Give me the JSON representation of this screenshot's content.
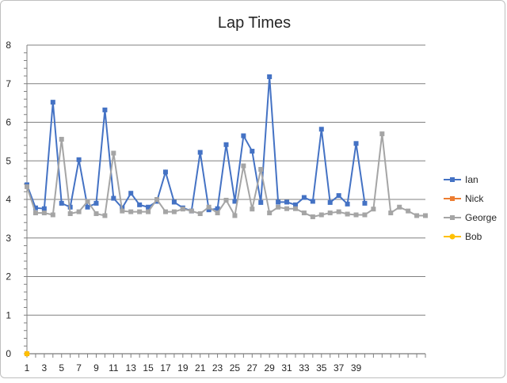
{
  "chart_data": {
    "type": "line",
    "title": "Lap Times",
    "xlabel": "",
    "ylabel": "",
    "ylim": [
      0,
      8
    ],
    "yticks": [
      0,
      1,
      2,
      3,
      4,
      5,
      6,
      7,
      8
    ],
    "xlim": [
      1,
      47
    ],
    "xticks": [
      1,
      3,
      5,
      7,
      9,
      11,
      13,
      15,
      17,
      19,
      21,
      23,
      25,
      27,
      29,
      31,
      33,
      35,
      37,
      39
    ],
    "grid": "horizontal",
    "legend_position": "right",
    "series": [
      {
        "name": "Ian",
        "color": "#4472c4",
        "marker": "square",
        "x": [
          1,
          2,
          3,
          4,
          5,
          6,
          7,
          8,
          9,
          10,
          11,
          12,
          13,
          14,
          15,
          16,
          17,
          18,
          19,
          20,
          21,
          22,
          23,
          24,
          25,
          26,
          27,
          28,
          29,
          30,
          31,
          32,
          33,
          34,
          35,
          36,
          37,
          38,
          39,
          40
        ],
        "values": [
          4.38,
          3.78,
          3.76,
          6.52,
          3.9,
          3.8,
          5.03,
          3.8,
          3.9,
          6.32,
          4.03,
          3.78,
          4.16,
          3.86,
          3.8,
          3.95,
          4.71,
          3.93,
          3.78,
          3.7,
          5.22,
          3.73,
          3.76,
          5.42,
          3.95,
          5.65,
          5.25,
          3.92,
          7.18,
          3.93,
          3.93,
          3.86,
          4.05,
          3.95,
          5.82,
          3.92,
          4.1,
          3.88,
          5.45,
          3.9
        ]
      },
      {
        "name": "Nick",
        "color": "#ed7d31",
        "marker": "square",
        "x": [
          1
        ],
        "values": [
          0
        ]
      },
      {
        "name": "George",
        "color": "#a5a5a5",
        "marker": "square",
        "x": [
          1,
          2,
          3,
          4,
          5,
          6,
          7,
          8,
          9,
          10,
          11,
          12,
          13,
          14,
          15,
          16,
          17,
          18,
          19,
          20,
          21,
          22,
          23,
          24,
          25,
          26,
          27,
          28,
          29,
          30,
          31,
          32,
          33,
          34,
          35,
          36,
          37,
          38,
          39,
          40,
          41,
          42,
          43,
          44,
          45,
          46,
          47
        ],
        "values": [
          4.33,
          3.65,
          3.65,
          3.6,
          5.56,
          3.63,
          3.68,
          3.95,
          3.63,
          3.58,
          5.2,
          3.7,
          3.68,
          3.68,
          3.68,
          4.0,
          3.68,
          3.68,
          3.75,
          3.7,
          3.63,
          3.8,
          3.65,
          3.98,
          3.58,
          4.87,
          3.75,
          4.78,
          3.65,
          3.8,
          3.76,
          3.76,
          3.65,
          3.55,
          3.6,
          3.65,
          3.68,
          3.62,
          3.6,
          3.6,
          3.75,
          5.7,
          3.65,
          3.8,
          3.7,
          3.58,
          3.58
        ]
      },
      {
        "name": "Bob",
        "color": "#ffc000",
        "marker": "circle",
        "x": [
          1
        ],
        "values": [
          0
        ]
      }
    ]
  }
}
